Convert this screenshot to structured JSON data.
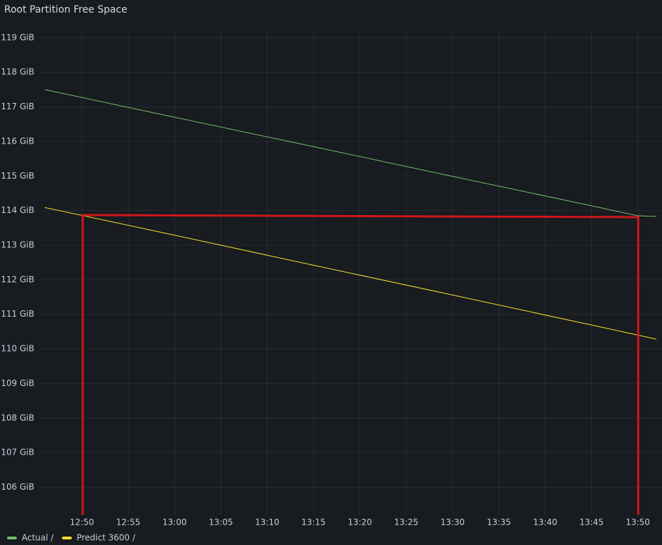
{
  "chart_data": {
    "type": "line",
    "title": "Root Partition Free Space",
    "x": [
      "12:46",
      "13:00",
      "13:15",
      "13:30",
      "13:45",
      "13:50",
      "13:52"
    ],
    "series": [
      {
        "name": "Actual /",
        "color": "#73bf69",
        "values": [
          117.5,
          116.7,
          115.85,
          114.99,
          114.14,
          113.85,
          113.83
        ]
      },
      {
        "name": "Predict 3600 /",
        "color": "#fade2a",
        "values": [
          114.09,
          113.29,
          112.42,
          111.56,
          110.69,
          110.4,
          110.28
        ]
      }
    ],
    "xlim": [
      "12:45",
      "13:52"
    ],
    "xticks": [
      "12:50",
      "12:55",
      "13:00",
      "13:05",
      "13:10",
      "13:15",
      "13:20",
      "13:25",
      "13:30",
      "13:35",
      "13:40",
      "13:45",
      "13:50"
    ],
    "ylim": [
      105.2,
      119.2
    ],
    "yticks": [
      {
        "value": 106,
        "label": "106 GiB"
      },
      {
        "value": 107,
        "label": "107 GiB"
      },
      {
        "value": 108,
        "label": "108 GiB"
      },
      {
        "value": 109,
        "label": "109 GiB"
      },
      {
        "value": 110,
        "label": "110 GiB"
      },
      {
        "value": 111,
        "label": "111 GiB"
      },
      {
        "value": 112,
        "label": "112 GiB"
      },
      {
        "value": 113,
        "label": "113 GiB"
      },
      {
        "value": 114,
        "label": "114 GiB"
      },
      {
        "value": 115,
        "label": "115 GiB"
      },
      {
        "value": 116,
        "label": "116 GiB"
      },
      {
        "value": 117,
        "label": "117 GiB"
      },
      {
        "value": 118,
        "label": "118 GiB"
      },
      {
        "value": 119,
        "label": "119 GiB"
      }
    ],
    "grid": true
  }
}
